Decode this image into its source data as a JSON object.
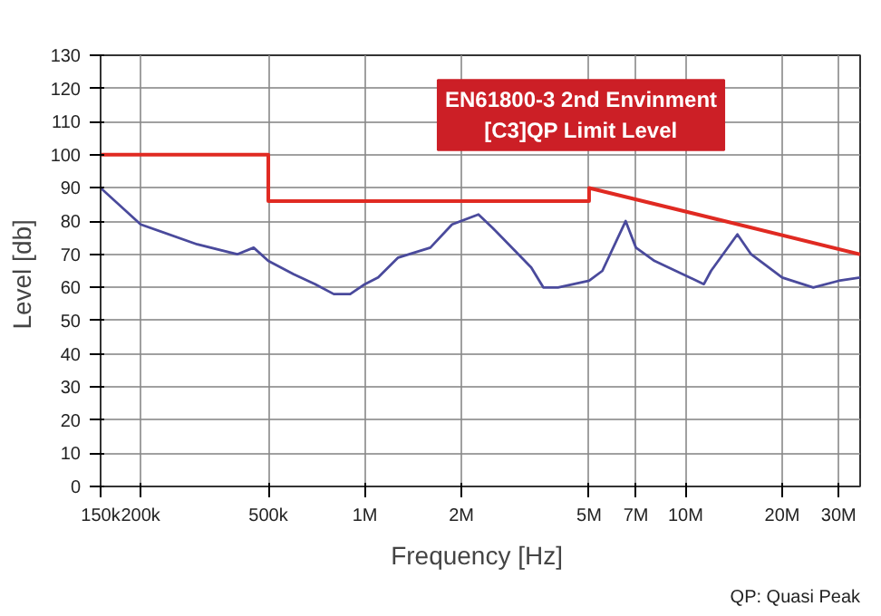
{
  "chart_data": {
    "type": "line",
    "xlabel": "Frequency  [Hz]",
    "ylabel": "Level  [db]",
    "log": "x",
    "grid": true,
    "marker": "none",
    "line_style": "solid",
    "xlim": [
      150000,
      35000000
    ],
    "xticks": [
      {
        "value": 150000,
        "label": "150k"
      },
      {
        "value": 200000,
        "label": "200k"
      },
      {
        "value": 500000,
        "label": "500k"
      },
      {
        "value": 1000000,
        "label": "1M"
      },
      {
        "value": 2000000,
        "label": "2M"
      },
      {
        "value": 5000000,
        "label": "5M"
      },
      {
        "value": 7000000,
        "label": "7M"
      },
      {
        "value": 10000000,
        "label": "10M"
      },
      {
        "value": 20000000,
        "label": "20M"
      },
      {
        "value": 30000000,
        "label": "30M"
      }
    ],
    "ylim": [
      0,
      130
    ],
    "yticks": [
      0,
      10,
      20,
      30,
      40,
      50,
      60,
      70,
      80,
      90,
      100,
      110,
      120,
      130
    ],
    "series": [
      {
        "color": "#4a4a9c",
        "x": [
          150000,
          200000,
          300000,
          400000,
          450000,
          500000,
          600000,
          700000,
          800000,
          900000,
          1000000,
          1100000,
          1270000,
          1600000,
          1870000,
          2260000,
          2500000,
          3300000,
          3600000,
          4000000,
          5000000,
          5500000,
          6500000,
          7000000,
          8000000,
          11400000,
          12000000,
          14500000,
          16000000,
          20000000,
          25000000,
          30000000,
          35000000
        ],
        "values": [
          90,
          79,
          73,
          70,
          72,
          68,
          64,
          61,
          58,
          58,
          61,
          63,
          69,
          72,
          79,
          82,
          78,
          66,
          60,
          60,
          62,
          65,
          80,
          72,
          68,
          61,
          65,
          76,
          70,
          63,
          60,
          62,
          63
        ]
      },
      {
        "color": "#e02a22",
        "x": [
          150000,
          500000,
          500000,
          5000000,
          5000000,
          35000000
        ],
        "values": [
          100,
          100,
          86,
          86,
          90,
          70
        ]
      }
    ],
    "annotations": [
      "EN61800-3 2nd Envinment\n[C3]QP Limit Level",
      "QP: Quasi Peak"
    ]
  }
}
